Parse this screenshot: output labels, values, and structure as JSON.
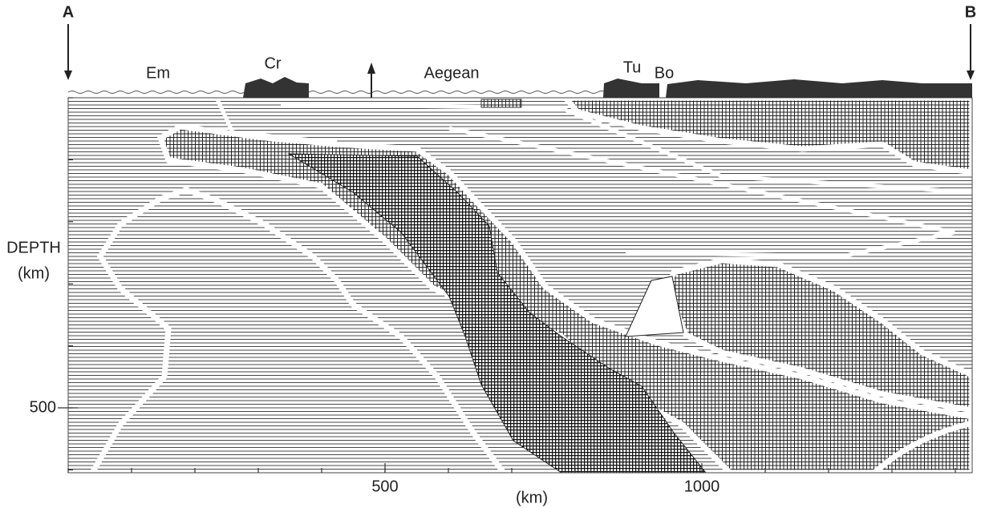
{
  "labels": {
    "a": "A",
    "b": "B",
    "em": "Em",
    "cr": "Cr",
    "aegean": "Aegean",
    "tu": "Tu",
    "bo": "Bo"
  },
  "x_axis": {
    "label": "(km)",
    "ticks": [
      500,
      1000
    ]
  },
  "y_axis": {
    "label_line1": "DEPTH",
    "label_line2": "(km)",
    "ticks": [
      500
    ]
  }
}
